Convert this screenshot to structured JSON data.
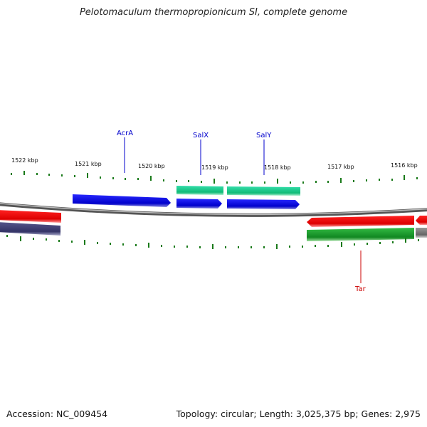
{
  "title": "Pelotomaculum thermopropionicum SI, complete genome",
  "footer": {
    "accession": "Accession: NC_009454",
    "summary": "Topology: circular; Length: 3,025,375 bp; Genes: 2,975"
  },
  "colors": {
    "tick": "#1a7a1a",
    "backbone": "#777777",
    "forward_gene": "#0000dd",
    "teal_gene": "#22cc88",
    "red_gene": "#ee1111",
    "navy_gene": "#44447a",
    "green_gene": "#22aa33",
    "gray_gene": "#888888",
    "label_blue": "#0000cc",
    "label_red": "#cc0000"
  },
  "kbp_labels": [
    "1522 kbp",
    "1521 kbp",
    "1520 kbp",
    "1519 kbp",
    "1518 kbp",
    "1517 kbp",
    "1516 kbp"
  ],
  "gene_labels": {
    "acrA": "AcrA",
    "salX": "SalX",
    "salY": "SalY",
    "tar": "Tar"
  }
}
